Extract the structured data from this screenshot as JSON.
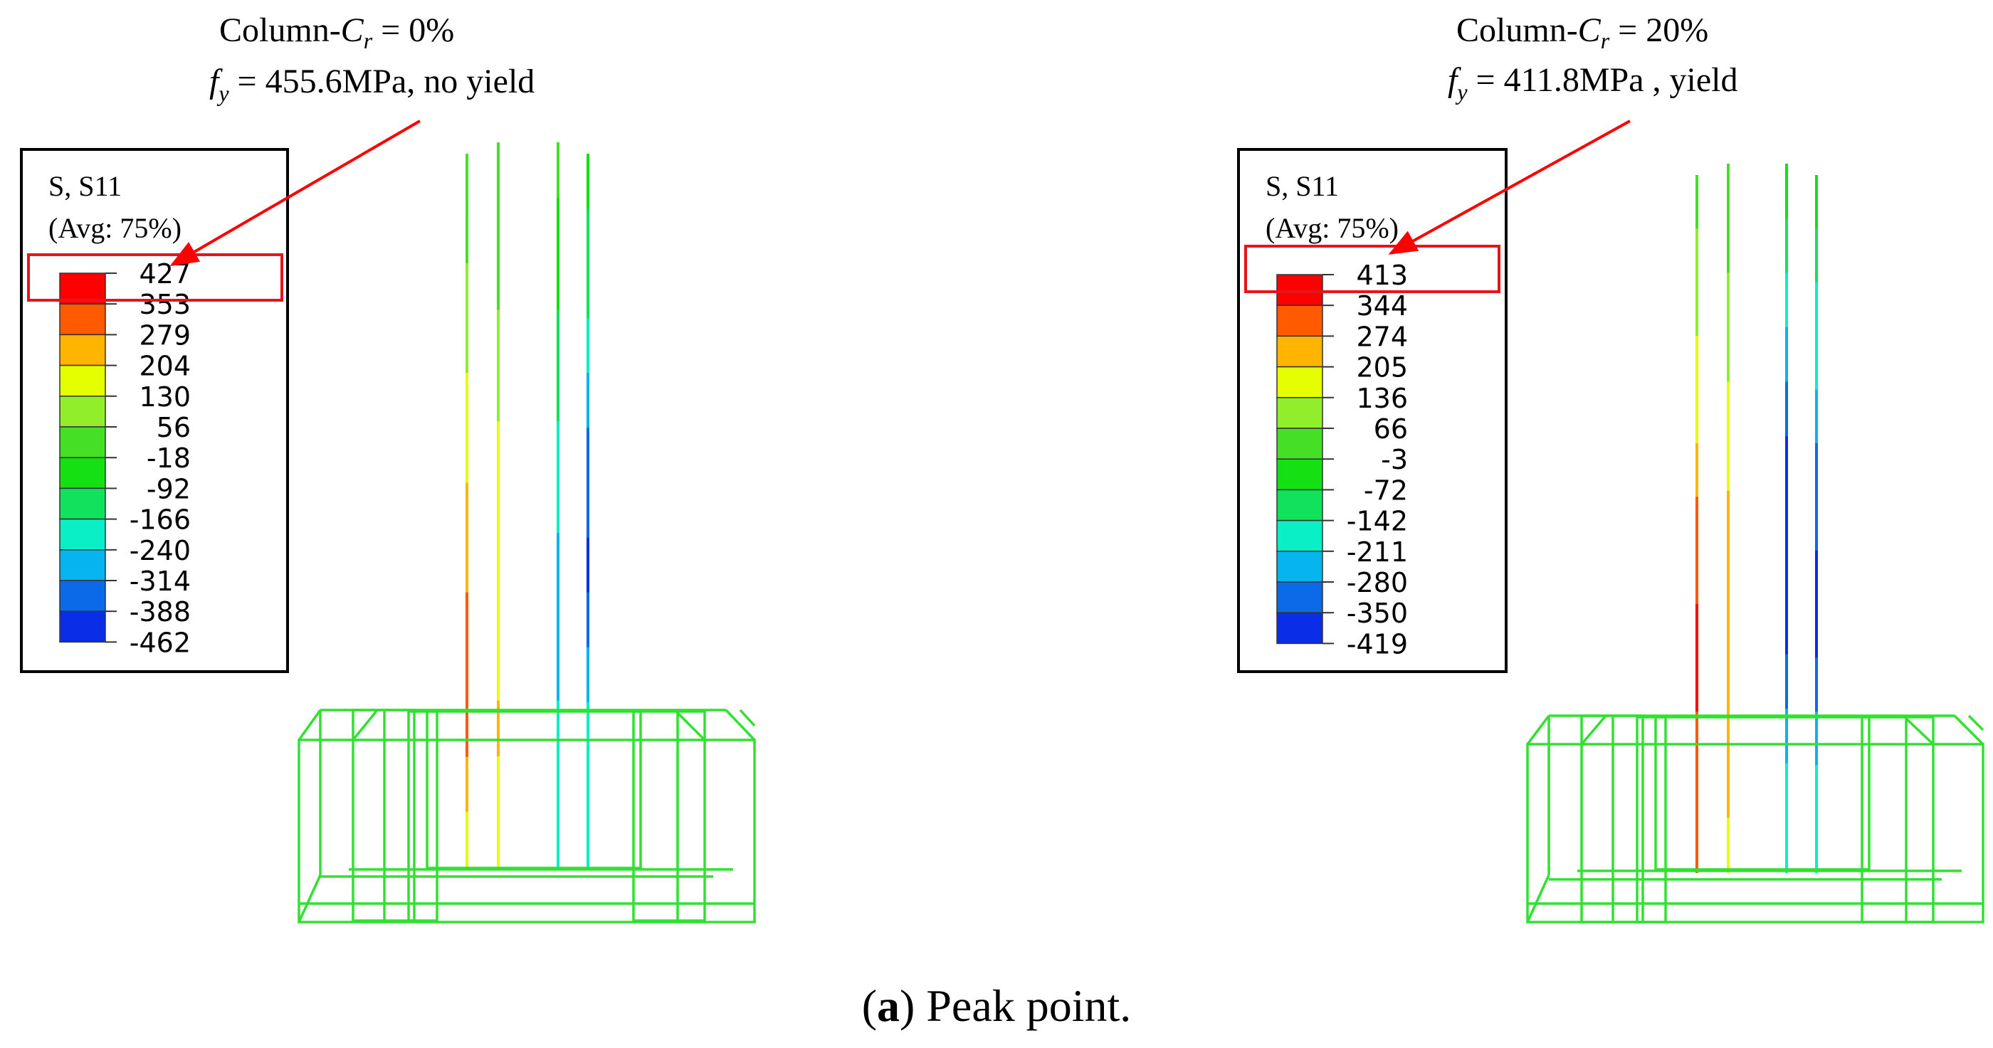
{
  "caption": {
    "label_bold": "a",
    "label_open": "(",
    "label_close": ")",
    "text": " Peak point."
  },
  "panels": [
    {
      "column_prefix": "Column-",
      "cr_symbol": "C",
      "cr_sub": "r",
      "cr_value": " = 0%",
      "fy_symbol": "f",
      "fy_sub": "y",
      "fy_value": " = 455.6MPa,  no yield",
      "legend": {
        "title": "S, S11",
        "avg": "(Avg: 75%)",
        "values": [
          "427",
          "353",
          "279",
          "204",
          "130",
          "56",
          "-18",
          "-92",
          "-166",
          "-240",
          "-314",
          "-388",
          "-462"
        ]
      }
    },
    {
      "column_prefix": "Column-",
      "cr_symbol": "C",
      "cr_sub": "r",
      "cr_value": " = 20%",
      "fy_symbol": "f",
      "fy_sub": "y",
      "fy_value": " = 411.8MPa  , yield",
      "legend": {
        "title": "S, S11",
        "avg": "(Avg: 75%)",
        "values": [
          "413",
          "344",
          "274",
          "205",
          "136",
          "66",
          "-3",
          "-72",
          "-142",
          "-211",
          "-280",
          "-350",
          "-419"
        ]
      }
    }
  ],
  "colors": {
    "scale": [
      "#ff0000",
      "#ff5a00",
      "#ffb400",
      "#e6ff00",
      "#90ee2a",
      "#45e025",
      "#14e014",
      "#10e25c",
      "#0aefc6",
      "#06b4ee",
      "#0b6ae8",
      "#0a2ee8",
      "#0000f0"
    ],
    "highlight": "#e8141c",
    "arrow": "#ff0000",
    "frame": "#32e032",
    "rebar_low": "#2e22f0"
  }
}
